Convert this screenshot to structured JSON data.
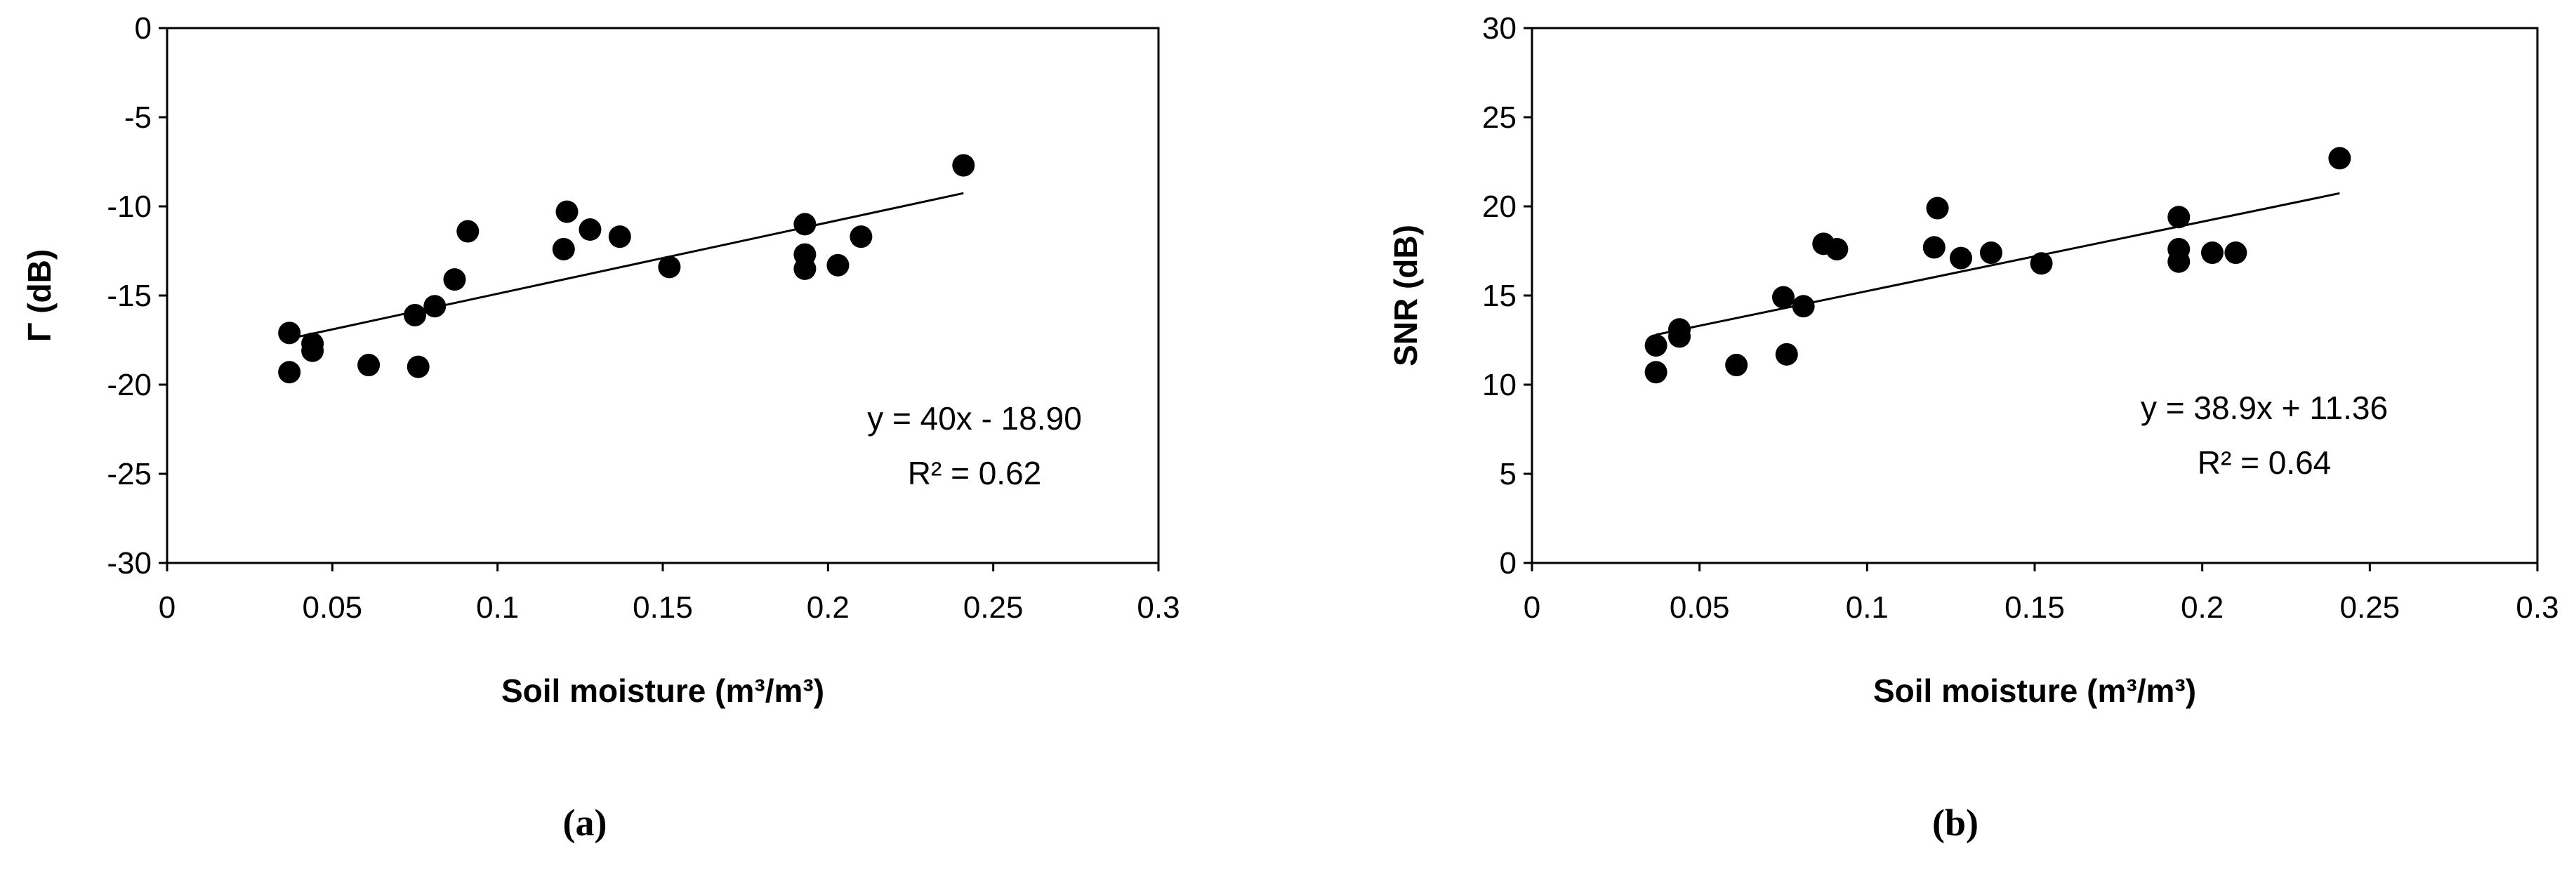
{
  "chart_data": [
    {
      "type": "scatter",
      "panel_label": "(a)",
      "xlabel": "Soil moisture (m³/m³)",
      "ylabel": "Γ (dB)",
      "xlim": [
        0,
        0.3
      ],
      "ylim": [
        -30,
        0
      ],
      "x_ticks": [
        0,
        0.05,
        0.1,
        0.15,
        0.2,
        0.25,
        0.3
      ],
      "x_tick_labels": [
        "0",
        "0.05",
        "0.1",
        "0.15",
        "0.2",
        "0.25",
        "0.3"
      ],
      "y_ticks": [
        -30,
        -25,
        -20,
        -15,
        -10,
        -5,
        0
      ],
      "y_tick_labels": [
        "-30",
        "-25",
        "-20",
        "-15",
        "-10",
        "-5",
        "0"
      ],
      "points": [
        {
          "x": 0.037,
          "y": -17.1
        },
        {
          "x": 0.037,
          "y": -19.3
        },
        {
          "x": 0.044,
          "y": -17.7
        },
        {
          "x": 0.044,
          "y": -18.1
        },
        {
          "x": 0.061,
          "y": -18.9
        },
        {
          "x": 0.075,
          "y": -16.1
        },
        {
          "x": 0.076,
          "y": -19.0
        },
        {
          "x": 0.081,
          "y": -15.6
        },
        {
          "x": 0.087,
          "y": -14.1
        },
        {
          "x": 0.091,
          "y": -11.4
        },
        {
          "x": 0.12,
          "y": -12.4
        },
        {
          "x": 0.121,
          "y": -10.3
        },
        {
          "x": 0.128,
          "y": -11.3
        },
        {
          "x": 0.137,
          "y": -11.7
        },
        {
          "x": 0.152,
          "y": -13.4
        },
        {
          "x": 0.193,
          "y": -11.0
        },
        {
          "x": 0.193,
          "y": -12.7
        },
        {
          "x": 0.193,
          "y": -13.5
        },
        {
          "x": 0.203,
          "y": -13.3
        },
        {
          "x": 0.21,
          "y": -11.7
        },
        {
          "x": 0.241,
          "y": -7.7
        }
      ],
      "trendline": {
        "slope": 40,
        "intercept": -18.9,
        "x_range": [
          0.037,
          0.241
        ]
      },
      "equation": "y = 40x - 18.90",
      "r_squared": "R² = 0.62"
    },
    {
      "type": "scatter",
      "panel_label": "(b)",
      "xlabel": "Soil moisture (m³/m³)",
      "ylabel": "SNR (dB)",
      "xlim": [
        0,
        0.3
      ],
      "ylim": [
        0,
        30
      ],
      "x_ticks": [
        0,
        0.05,
        0.1,
        0.15,
        0.2,
        0.25,
        0.3
      ],
      "x_tick_labels": [
        "0",
        "0.05",
        "0.1",
        "0.15",
        "0.2",
        "0.25",
        "0.3"
      ],
      "y_ticks": [
        0,
        5,
        10,
        15,
        20,
        25,
        30
      ],
      "y_tick_labels": [
        "0",
        "5",
        "10",
        "15",
        "20",
        "25",
        "30"
      ],
      "points": [
        {
          "x": 0.037,
          "y": 12.2
        },
        {
          "x": 0.037,
          "y": 10.7
        },
        {
          "x": 0.044,
          "y": 13.1
        },
        {
          "x": 0.044,
          "y": 12.7
        },
        {
          "x": 0.061,
          "y": 11.1
        },
        {
          "x": 0.075,
          "y": 14.9
        },
        {
          "x": 0.076,
          "y": 11.7
        },
        {
          "x": 0.081,
          "y": 14.4
        },
        {
          "x": 0.087,
          "y": 17.9
        },
        {
          "x": 0.091,
          "y": 17.6
        },
        {
          "x": 0.12,
          "y": 17.7
        },
        {
          "x": 0.121,
          "y": 19.9
        },
        {
          "x": 0.128,
          "y": 17.1
        },
        {
          "x": 0.137,
          "y": 17.4
        },
        {
          "x": 0.152,
          "y": 16.8
        },
        {
          "x": 0.193,
          "y": 19.4
        },
        {
          "x": 0.193,
          "y": 17.6
        },
        {
          "x": 0.193,
          "y": 16.9
        },
        {
          "x": 0.203,
          "y": 17.4
        },
        {
          "x": 0.21,
          "y": 17.4
        },
        {
          "x": 0.241,
          "y": 22.7
        }
      ],
      "trendline": {
        "slope": 38.9,
        "intercept": 11.36,
        "x_range": [
          0.037,
          0.241
        ]
      },
      "equation": "y = 38.9x + 11.36",
      "r_squared": "R² = 0.64"
    }
  ]
}
